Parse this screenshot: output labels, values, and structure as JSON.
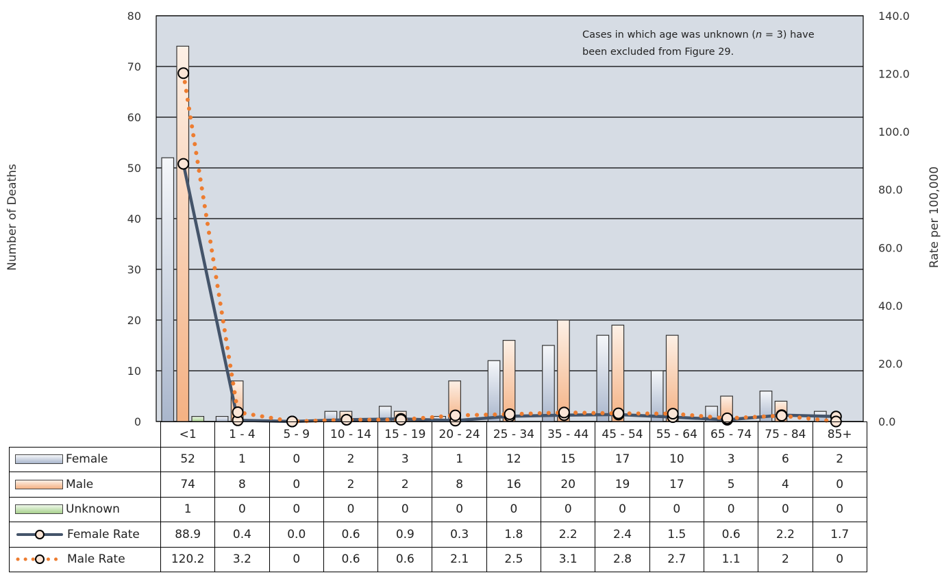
{
  "chart_data": {
    "type": "bar",
    "categories": [
      "<1",
      "1 - 4",
      "5 - 9",
      "10 - 14",
      "15 - 19",
      "20 - 24",
      "25 - 34",
      "35 - 44",
      "45 - 54",
      "55 - 64",
      "65 - 74",
      "75 - 84",
      "85+"
    ],
    "series": [
      {
        "name": "Female",
        "type": "bar",
        "axis": "left",
        "values": [
          52,
          1,
          0,
          2,
          3,
          1,
          12,
          15,
          17,
          10,
          3,
          6,
          2
        ],
        "display": [
          "52",
          "1",
          "0",
          "2",
          "3",
          "1",
          "12",
          "15",
          "17",
          "10",
          "3",
          "6",
          "2"
        ],
        "color": "#c9d3e4"
      },
      {
        "name": "Male",
        "type": "bar",
        "axis": "left",
        "values": [
          74,
          8,
          0,
          2,
          2,
          8,
          16,
          20,
          19,
          17,
          5,
          4,
          0
        ],
        "display": [
          "74",
          "8",
          "0",
          "2",
          "2",
          "8",
          "16",
          "20",
          "19",
          "17",
          "5",
          "4",
          "0"
        ],
        "color": "#f6c5a2"
      },
      {
        "name": "Unknown",
        "type": "bar",
        "axis": "left",
        "values": [
          1,
          0,
          0,
          0,
          0,
          0,
          0,
          0,
          0,
          0,
          0,
          0,
          0
        ],
        "display": [
          "1",
          "0",
          "0",
          "0",
          "0",
          "0",
          "0",
          "0",
          "0",
          "0",
          "0",
          "0",
          "0"
        ],
        "color": "#c5e3bd"
      },
      {
        "name": "Female Rate",
        "type": "line",
        "axis": "right",
        "values": [
          88.9,
          0.4,
          0.0,
          0.6,
          0.9,
          0.3,
          1.8,
          2.2,
          2.4,
          1.5,
          0.6,
          2.2,
          1.7
        ],
        "display": [
          "88.9",
          "0.4",
          "0.0",
          "0.6",
          "0.9",
          "0.3",
          "1.8",
          "2.2",
          "2.4",
          "1.5",
          "0.6",
          "2.2",
          "1.7"
        ],
        "color": "#44546a"
      },
      {
        "name": "Male Rate",
        "type": "line",
        "axis": "right",
        "values": [
          120.2,
          3.2,
          0,
          0.6,
          0.6,
          2.1,
          2.5,
          3.1,
          2.8,
          2.7,
          1.1,
          2,
          0
        ],
        "display": [
          "120.2",
          "3.2",
          "0",
          "0.6",
          "0.6",
          "2.1",
          "2.5",
          "3.1",
          "2.8",
          "2.7",
          "1.1",
          "2",
          "0"
        ],
        "color": "#ed7d31"
      }
    ],
    "ylabel": "Number of Deaths",
    "y2label": "Rate per 100,000",
    "ylim": [
      0,
      80
    ],
    "y2lim": [
      0,
      140
    ],
    "yticks": [
      "0",
      "10",
      "20",
      "30",
      "40",
      "50",
      "60",
      "70",
      "80"
    ],
    "y2ticks": [
      "0.0",
      "20.0",
      "40.0",
      "60.0",
      "80.0",
      "100.0",
      "120.0",
      "140.0"
    ],
    "grid": true,
    "plot_background": "#d6dce4",
    "note": {
      "line1_before": "Cases in which age was unknown (",
      "n_symbol": "n",
      "line1_after": " = 3) have",
      "line2": "been excluded from Figure 29."
    },
    "legend": "data table"
  }
}
